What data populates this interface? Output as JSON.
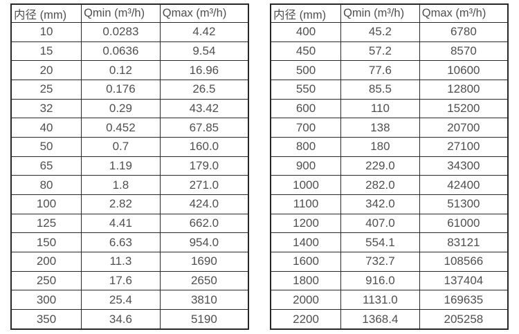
{
  "colors": {
    "border": "#262626",
    "text": "#4f4f4f",
    "background": "#ffffff"
  },
  "tables": [
    {
      "id": "left",
      "headers": [
        "内径 (mm)",
        "Qmin (m³/h)",
        "Qmax (m³/h)"
      ],
      "rows": [
        [
          "10",
          "0.0283",
          "4.42"
        ],
        [
          "15",
          "0.0636",
          "9.54"
        ],
        [
          "20",
          "0.12",
          "16.96"
        ],
        [
          "25",
          "0.176",
          "26.5"
        ],
        [
          "32",
          "0.29",
          "43.42"
        ],
        [
          "40",
          "0.452",
          "67.85"
        ],
        [
          "50",
          "0.7",
          "160.0"
        ],
        [
          "65",
          "1.19",
          "179.0"
        ],
        [
          "80",
          "1.8",
          "271.0"
        ],
        [
          "100",
          "2.82",
          "424.0"
        ],
        [
          "125",
          "4.41",
          "662.0"
        ],
        [
          "150",
          "6.63",
          "954.0"
        ],
        [
          "200",
          "11.3",
          "1690"
        ],
        [
          "250",
          "17.6",
          "2650"
        ],
        [
          "300",
          "25.4",
          "3810"
        ],
        [
          "350",
          "34.6",
          "5190"
        ]
      ]
    },
    {
      "id": "right",
      "headers": [
        "内径 (mm)",
        "Qmin (m³/h)",
        "Qmax (m³/h)"
      ],
      "rows": [
        [
          "400",
          "45.2",
          "6780"
        ],
        [
          "450",
          "57.2",
          "8570"
        ],
        [
          "500",
          "77.6",
          "10600"
        ],
        [
          "550",
          "85.5",
          "12800"
        ],
        [
          "600",
          "110",
          "15200"
        ],
        [
          "700",
          "138",
          "20700"
        ],
        [
          "800",
          "180",
          "27100"
        ],
        [
          "900",
          "229.0",
          "34300"
        ],
        [
          "1000",
          "282.0",
          "42400"
        ],
        [
          "1100",
          "342.0",
          "51300"
        ],
        [
          "1200",
          "407.0",
          "61000"
        ],
        [
          "1400",
          "554.1",
          "83121"
        ],
        [
          "1600",
          "732.7",
          "108566"
        ],
        [
          "1800",
          "916.0",
          "137404"
        ],
        [
          "2000",
          "1131.0",
          "169635"
        ],
        [
          "2200",
          "1368.4",
          "205258"
        ]
      ]
    }
  ]
}
